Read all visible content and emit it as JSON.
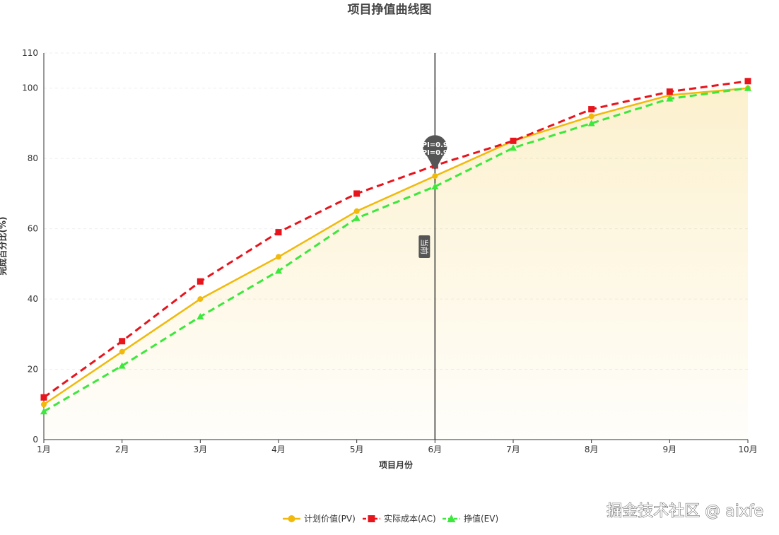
{
  "chart_data": {
    "type": "line",
    "title": "项目挣值曲线图",
    "xlabel": "项目月份",
    "ylabel": "完成百分比(%)",
    "categories": [
      "1月",
      "2月",
      "3月",
      "4月",
      "5月",
      "6月",
      "7月",
      "8月",
      "9月",
      "10月"
    ],
    "ylim": [
      0,
      110
    ],
    "yticks": [
      0,
      20,
      40,
      60,
      80,
      100,
      110
    ],
    "grid": true,
    "legend_position": "bottom-center",
    "series": [
      {
        "name": "计划价值(PV)",
        "color": "#F0B90B",
        "line": "solid",
        "marker": "circle",
        "area": true,
        "values": [
          10,
          25,
          40,
          52,
          65,
          75,
          85,
          92,
          98,
          100
        ]
      },
      {
        "name": "实际成本(AC)",
        "color": "#E8141C",
        "line": "dashed",
        "marker": "square",
        "values": [
          12,
          28,
          45,
          59,
          70,
          78,
          85,
          94,
          99,
          102
        ]
      },
      {
        "name": "挣值(EV)",
        "color": "#3BE83B",
        "line": "dashed",
        "marker": "triangle",
        "values": [
          8,
          21,
          35,
          48,
          63,
          72,
          83,
          90,
          97,
          100
        ]
      }
    ],
    "mark_line": {
      "x": "6月",
      "label": "当前",
      "color": "#555555"
    },
    "mark_point": {
      "x": "6月",
      "y": 82,
      "lines": [
        "PI=0.9",
        "PI=0.9"
      ],
      "color": "#555555"
    }
  },
  "watermark": "掘金技术社区 @ aixfe"
}
